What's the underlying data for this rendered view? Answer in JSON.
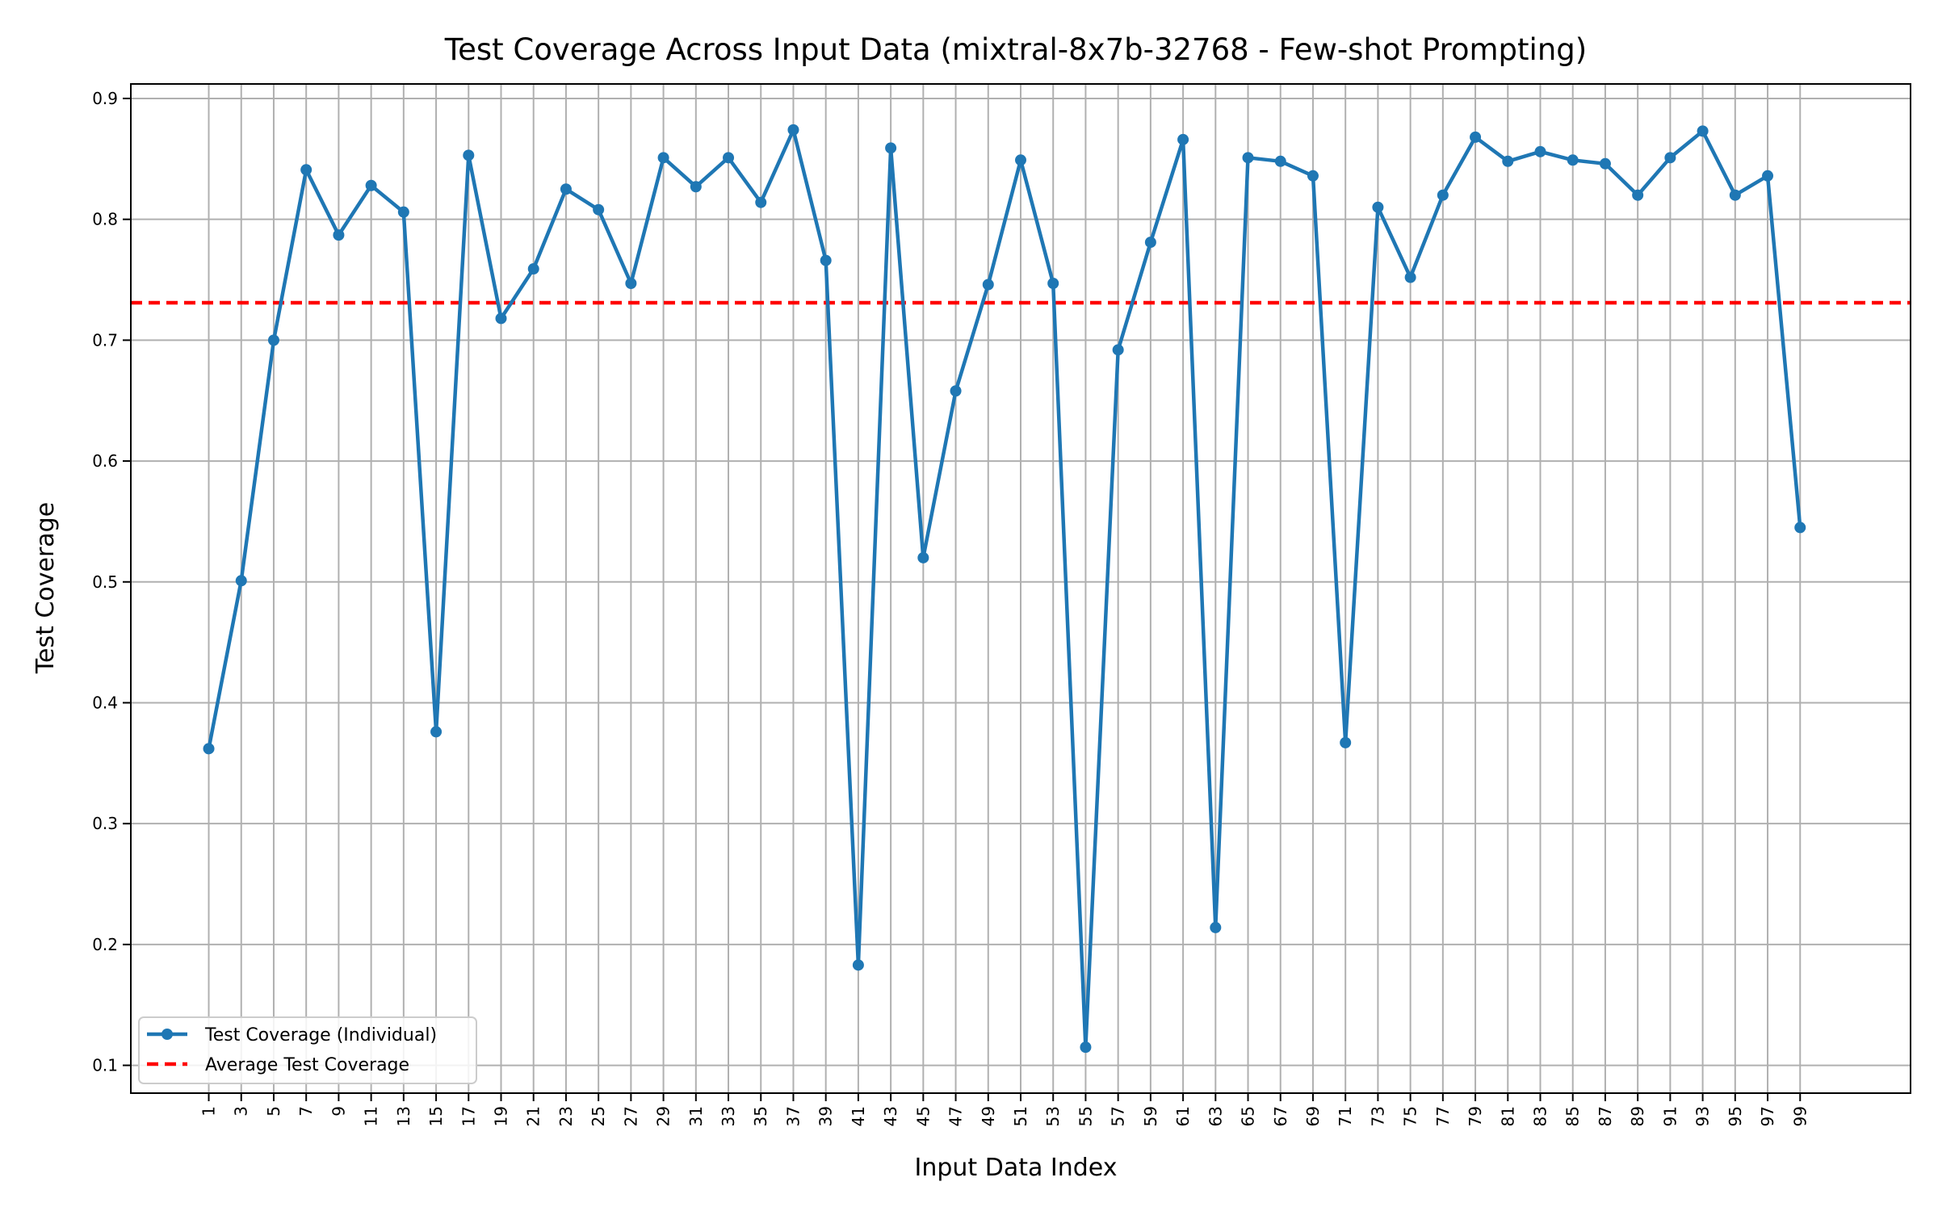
{
  "chart_data": {
    "type": "line",
    "title": "Test Coverage Across Input Data (mixtral-8x7b-32768 - Few-shot Prompting)",
    "xlabel": "Input Data Index",
    "ylabel": "Test Coverage",
    "x": [
      1,
      3,
      5,
      7,
      9,
      11,
      13,
      15,
      17,
      19,
      21,
      23,
      25,
      27,
      29,
      31,
      33,
      35,
      37,
      39,
      41,
      43,
      45,
      47,
      49,
      51,
      53,
      55,
      57,
      59,
      61,
      63,
      65,
      67,
      69,
      71,
      73,
      75,
      77,
      79,
      81,
      83,
      85,
      87,
      89,
      91,
      93,
      95,
      97,
      99
    ],
    "x_tick_labels": [
      "1",
      "3",
      "5",
      "7",
      "9",
      "11",
      "13",
      "15",
      "17",
      "19",
      "21",
      "23",
      "25",
      "27",
      "29",
      "31",
      "33",
      "35",
      "37",
      "39",
      "41",
      "43",
      "45",
      "47",
      "49",
      "51",
      "53",
      "55",
      "57",
      "59",
      "61",
      "63",
      "65",
      "67",
      "69",
      "71",
      "73",
      "75",
      "77",
      "79",
      "81",
      "83",
      "85",
      "87",
      "89",
      "91",
      "93",
      "95",
      "97",
      "99"
    ],
    "y_ticks": [
      0.1,
      0.2,
      0.3,
      0.4,
      0.5,
      0.6,
      0.7,
      0.8,
      0.9
    ],
    "y_tick_labels": [
      "0.1",
      "0.2",
      "0.3",
      "0.4",
      "0.5",
      "0.6",
      "0.7",
      "0.8",
      "0.9"
    ],
    "ylim": [
      0.077,
      0.912
    ],
    "xlim": [
      -3.8,
      105.8
    ],
    "grid": true,
    "legend_position": "lower-left",
    "series": [
      {
        "name": "Test Coverage (Individual)",
        "color": "#1f77b4",
        "style": "solid-line-with-dots",
        "values": [
          0.362,
          0.501,
          0.7,
          0.841,
          0.787,
          0.828,
          0.806,
          0.376,
          0.853,
          0.718,
          0.759,
          0.825,
          0.808,
          0.747,
          0.851,
          0.827,
          0.851,
          0.814,
          0.874,
          0.766,
          0.183,
          0.859,
          0.52,
          0.658,
          0.746,
          0.849,
          0.747,
          0.115,
          0.692,
          0.781,
          0.866,
          0.214,
          0.851,
          0.848,
          0.836,
          0.367,
          0.81,
          0.752,
          0.82,
          0.868,
          0.848,
          0.856,
          0.849,
          0.846,
          0.82,
          0.851,
          0.873,
          0.82,
          0.836,
          0.545
        ]
      },
      {
        "name": "Average Test Coverage",
        "color": "#ff0000",
        "style": "dashed-line",
        "value": 0.731
      }
    ]
  }
}
